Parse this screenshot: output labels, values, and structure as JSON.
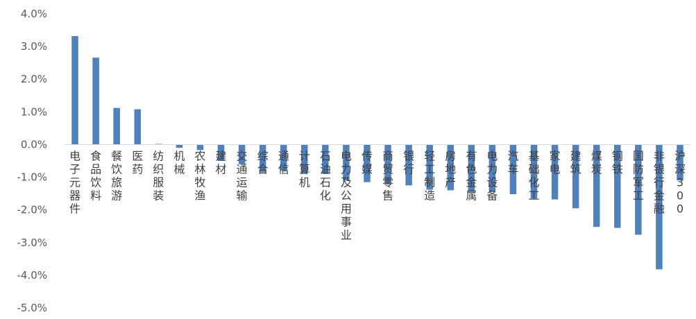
{
  "chart_data": {
    "type": "bar",
    "title": "",
    "xlabel": "",
    "ylabel": "",
    "ylim": [
      -5.0,
      4.0
    ],
    "y_tick_step": 1.0,
    "y_tick_labels": [
      "4.0%",
      "3.0%",
      "2.0%",
      "1.0%",
      "0.0%",
      "-1.0%",
      "-2.0%",
      "-3.0%",
      "-4.0%",
      "-5.0%"
    ],
    "grid": false,
    "legend": "none",
    "bar_color": "#4f81bd",
    "categories": [
      "电子元器件",
      "食品饮料",
      "餐饮旅游",
      "医药",
      "纺织服装",
      "机械",
      "农林牧渔",
      "建材",
      "交通运输",
      "综合",
      "通信",
      "计算机",
      "石油石化",
      "电力及公用事业",
      "传媒",
      "商贸零售",
      "银行",
      "轻工制造",
      "房地产",
      "有色金属",
      "电力设备",
      "汽车",
      "基础化工",
      "家电",
      "建筑",
      "煤炭",
      "钢铁",
      "国防军工",
      "非银行金融",
      "沪深300"
    ],
    "values": [
      3.32,
      2.66,
      1.12,
      1.08,
      0.02,
      -0.1,
      -0.17,
      -0.5,
      -0.6,
      -0.85,
      -0.8,
      -0.9,
      -0.9,
      -1.1,
      -1.15,
      -1.2,
      -1.25,
      -1.38,
      -1.4,
      -1.45,
      -1.45,
      -1.52,
      -1.65,
      -1.68,
      -1.95,
      -2.52,
      -2.55,
      -2.76,
      -3.82,
      -1.1
    ]
  }
}
